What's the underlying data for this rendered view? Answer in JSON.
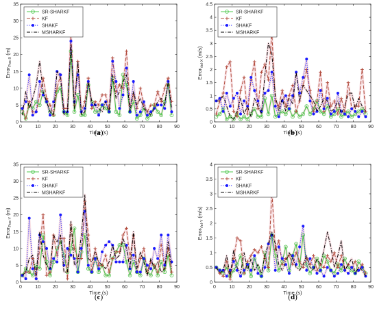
{
  "legend_entries": [
    "SR-SHARKF",
    "KF",
    "SHAKF",
    "MSHARKF"
  ],
  "colors": {
    "sr_sharkf": "#4cc84c",
    "kf": "#b04a3a",
    "shakf": "#1a1aff",
    "msharkf": "#000000",
    "glow": "#f2c8d0"
  },
  "chart_data": [
    {
      "type": "line",
      "panel_label": "a",
      "xlabel": "Time (s)",
      "ylabel": "Error",
      "ylabel_sub": "Pos-X",
      "ylabel_unit": "(m)",
      "xlim": [
        0,
        90
      ],
      "ylim": [
        0,
        35
      ],
      "xticks": [
        0,
        10,
        20,
        30,
        40,
        50,
        60,
        70,
        80,
        90
      ],
      "yticks": [
        0,
        5,
        10,
        15,
        20,
        25,
        30,
        35
      ],
      "ytick_labels": [
        "0",
        "5",
        "10",
        "15",
        "20",
        "25",
        "30",
        "35"
      ],
      "x": [
        1,
        3,
        5,
        7,
        9,
        11,
        13,
        15,
        17,
        19,
        21,
        23,
        25,
        27,
        29,
        31,
        33,
        35,
        37,
        39,
        41,
        43,
        45,
        47,
        49,
        51,
        53,
        55,
        57,
        59,
        61,
        63,
        65,
        67,
        69,
        71,
        73,
        75,
        77,
        79,
        81,
        83,
        85,
        87
      ],
      "series": [
        {
          "name": "SR-SHARKF",
          "values": [
            3,
            1,
            5,
            4,
            6,
            5,
            9,
            6,
            3,
            2,
            9,
            10,
            3,
            2,
            21,
            3,
            8,
            2,
            2,
            11,
            6,
            3,
            3,
            5,
            4,
            3,
            13,
            3,
            2,
            14,
            11,
            3,
            6,
            1,
            2,
            4,
            1,
            2,
            5,
            3,
            2,
            6,
            11,
            2
          ]
        },
        {
          "name": "KF",
          "values": [
            4,
            1,
            6,
            3,
            3,
            8,
            13,
            7,
            5,
            2,
            10,
            14,
            4,
            4,
            26,
            5,
            18,
            3,
            6,
            13,
            4,
            6,
            5,
            8,
            8,
            4,
            19,
            9,
            11,
            10,
            21,
            5,
            8,
            4,
            10,
            5,
            3,
            5,
            5,
            9,
            6,
            10,
            13,
            6
          ]
        },
        {
          "name": "SHAKF",
          "values": [
            4,
            6,
            14,
            2,
            3,
            12,
            8,
            6,
            2,
            6,
            15,
            14,
            3,
            3,
            24,
            6,
            14,
            3,
            4,
            12,
            5,
            5,
            2,
            5,
            6,
            3,
            18,
            12,
            4,
            8,
            16,
            3,
            12,
            2,
            3,
            6,
            2,
            3,
            4,
            5,
            5,
            4,
            12,
            3
          ]
        },
        {
          "name": "MSHARKF",
          "values": [
            2,
            9,
            4,
            7,
            11,
            18,
            9,
            6,
            3,
            2,
            15,
            13,
            2,
            3,
            23,
            4,
            18,
            2,
            3,
            12,
            6,
            5,
            4,
            3,
            6,
            3,
            14,
            7,
            9,
            12,
            14,
            3,
            9,
            5,
            7,
            4,
            3,
            2,
            4,
            6,
            7,
            5,
            12,
            4
          ]
        }
      ]
    },
    {
      "type": "line",
      "panel_label": "b",
      "xlabel": "Time (s)",
      "ylabel": "Error",
      "ylabel_sub": "Vel-X",
      "ylabel_unit": "(m/s)",
      "xlim": [
        0,
        90
      ],
      "ylim": [
        0,
        4.5
      ],
      "xticks": [
        0,
        10,
        20,
        30,
        40,
        50,
        60,
        70,
        80,
        90
      ],
      "yticks": [
        0,
        0.5,
        1,
        1.5,
        2,
        2.5,
        3,
        3.5,
        4,
        4.5
      ],
      "ytick_labels": [
        "0",
        "0.5",
        "1",
        "1.5",
        "2",
        "2.5",
        "3",
        "3.5",
        "4",
        "4.5"
      ],
      "x": [
        1,
        3,
        5,
        7,
        9,
        11,
        13,
        15,
        17,
        19,
        21,
        23,
        25,
        27,
        29,
        31,
        33,
        35,
        37,
        39,
        41,
        43,
        45,
        47,
        49,
        51,
        53,
        55,
        57,
        59,
        61,
        63,
        65,
        67,
        69,
        71,
        73,
        75,
        77,
        79,
        81,
        83,
        85,
        87
      ],
      "series": [
        {
          "name": "SR-SHARKF",
          "values": [
            0.2,
            0.3,
            0.5,
            0.1,
            0.2,
            0.1,
            0.3,
            0.1,
            0.2,
            0.1,
            0.3,
            0.5,
            0.2,
            0.2,
            0.9,
            0.3,
            1.0,
            0.2,
            0.3,
            0.4,
            0.3,
            0.5,
            0.2,
            0.4,
            0.2,
            0.3,
            0.6,
            0.3,
            0.5,
            0.8,
            0.4,
            0.3,
            0.6,
            0.2,
            0.3,
            0.5,
            0.2,
            0.3,
            0.4,
            0.2,
            0.3,
            0.4,
            0.5,
            0.3
          ]
        },
        {
          "name": "KF",
          "values": [
            0.3,
            0.8,
            1.1,
            2.1,
            2.3,
            0.4,
            0.2,
            1.2,
            1.7,
            0.3,
            1.6,
            2.3,
            0.5,
            1.9,
            2.2,
            1.6,
            3.4,
            0.8,
            0.6,
            1.2,
            0.6,
            1.0,
            1.4,
            0.4,
            0.8,
            1.4,
            2.0,
            1.2,
            0.4,
            0.8,
            1.9,
            0.4,
            1.5,
            0.6,
            0.8,
            0.3,
            0.9,
            0.4,
            1.5,
            0.5,
            0.6,
            0.6,
            2.0,
            0.4
          ]
        },
        {
          "name": "SHAKF",
          "values": [
            0.8,
            0.9,
            0.4,
            1.1,
            0.6,
            0.9,
            1.1,
            0.3,
            0.8,
            0.6,
            1.7,
            1.2,
            0.8,
            0.4,
            1.1,
            1.2,
            1.9,
            0.6,
            0.2,
            0.8,
            1.0,
            0.5,
            1.0,
            1.9,
            1.1,
            1.7,
            2.4,
            0.8,
            0.3,
            0.4,
            1.2,
            0.5,
            0.9,
            0.3,
            0.4,
            1.1,
            0.4,
            0.3,
            0.2,
            0.5,
            0.4,
            0.2,
            0.4,
            0.2
          ]
        },
        {
          "name": "MSHARKF",
          "values": [
            0.8,
            0.8,
            1.0,
            0.6,
            0.2,
            0.1,
            0.4,
            0.9,
            0.3,
            0.6,
            0.2,
            0.9,
            0.6,
            0.3,
            1.8,
            3.0,
            2.6,
            1.0,
            0.4,
            0.9,
            0.4,
            0.9,
            0.7,
            1.9,
            0.8,
            1.4,
            1.2,
            1.0,
            0.8,
            0.4,
            0.6,
            0.9,
            0.8,
            0.4,
            0.5,
            0.8,
            0.3,
            0.6,
            1.1,
            1.1,
            0.5,
            0.9,
            0.6,
            0.4
          ]
        }
      ]
    },
    {
      "type": "line",
      "panel_label": "c",
      "xlabel": "Time (s)",
      "ylabel": "Error",
      "ylabel_sub": "Pos-Y",
      "ylabel_unit": "(m)",
      "xlim": [
        0,
        90
      ],
      "ylim": [
        0,
        35
      ],
      "xticks": [
        0,
        10,
        20,
        30,
        40,
        50,
        60,
        70,
        80,
        90
      ],
      "yticks": [
        0,
        5,
        10,
        15,
        20,
        25,
        30,
        35
      ],
      "ytick_labels": [
        "0",
        "5",
        "10",
        "15",
        "20",
        "25",
        "30",
        "35"
      ],
      "x": [
        1,
        3,
        5,
        7,
        9,
        11,
        13,
        15,
        17,
        19,
        21,
        23,
        25,
        27,
        29,
        31,
        33,
        35,
        37,
        39,
        41,
        43,
        45,
        47,
        49,
        51,
        53,
        55,
        57,
        59,
        61,
        63,
        65,
        67,
        69,
        71,
        73,
        75,
        77,
        79,
        81,
        83,
        85,
        87
      ],
      "series": [
        {
          "name": "SR-SHARKF",
          "values": [
            2,
            4,
            3,
            2,
            5,
            4,
            14,
            6,
            2,
            6,
            10,
            12,
            8,
            3,
            10,
            16,
            3,
            9,
            14,
            4,
            3,
            7,
            3,
            5,
            2,
            2,
            7,
            9,
            11,
            11,
            6,
            2,
            6,
            3,
            2,
            7,
            3,
            2,
            5,
            2,
            6,
            3,
            8,
            2
          ]
        },
        {
          "name": "KF",
          "values": [
            2,
            3,
            3,
            7,
            1,
            10,
            20,
            2,
            3,
            14,
            8,
            13,
            13,
            1,
            17,
            10,
            7,
            7,
            24,
            14,
            3,
            10,
            5,
            5,
            8,
            3,
            7,
            9,
            9,
            14,
            16,
            7,
            14,
            3,
            7,
            10,
            3,
            6,
            5,
            3,
            11,
            4,
            10,
            3
          ]
        },
        {
          "name": "SHAKF",
          "values": [
            2,
            1,
            19,
            4,
            1,
            14,
            12,
            10,
            4,
            7,
            6,
            20,
            5,
            10,
            8,
            7,
            3,
            10,
            21,
            5,
            3,
            7,
            4,
            9,
            11,
            12,
            11,
            6,
            6,
            6,
            11,
            4,
            8,
            3,
            3,
            7,
            5,
            4,
            10,
            7,
            14,
            5,
            14,
            6
          ]
        },
        {
          "name": "MSHARKF",
          "values": [
            2,
            3,
            7,
            8,
            2,
            15,
            8,
            5,
            4,
            14,
            12,
            14,
            3,
            3,
            18,
            5,
            6,
            14,
            26,
            7,
            6,
            9,
            6,
            5,
            4,
            6,
            11,
            7,
            8,
            13,
            10,
            4,
            15,
            4,
            9,
            6,
            2,
            7,
            4,
            6,
            3,
            4,
            12,
            4
          ]
        }
      ]
    },
    {
      "type": "line",
      "panel_label": "d",
      "xlabel": "Time (s)",
      "ylabel": "Error",
      "ylabel_sub": "Vel-Y",
      "ylabel_unit": "(m/s)",
      "xlim": [
        0,
        90
      ],
      "ylim": [
        0,
        4
      ],
      "xticks": [
        0,
        10,
        20,
        30,
        40,
        50,
        60,
        70,
        80,
        90
      ],
      "yticks": [
        0,
        0.5,
        1,
        1.5,
        2,
        2.5,
        3,
        3.5,
        4
      ],
      "ytick_labels": [
        "0",
        "0.5",
        "1",
        "1.5",
        "2",
        "2.5",
        "3",
        "3.5",
        "4"
      ],
      "x": [
        1,
        3,
        5,
        7,
        9,
        11,
        13,
        15,
        17,
        19,
        21,
        23,
        25,
        27,
        29,
        31,
        33,
        35,
        37,
        39,
        41,
        43,
        45,
        47,
        49,
        51,
        53,
        55,
        57,
        59,
        61,
        63,
        65,
        67,
        69,
        71,
        73,
        75,
        77,
        79,
        81,
        83,
        85,
        87
      ],
      "series": [
        {
          "name": "SR-SHARKF",
          "values": [
            0.5,
            0.4,
            0.3,
            0.5,
            0.2,
            0.4,
            0.6,
            0.9,
            0.3,
            0.6,
            0.2,
            0.8,
            0.5,
            0.2,
            1.0,
            0.4,
            1.6,
            0.9,
            0.4,
            0.7,
            1.2,
            0.4,
            0.9,
            1.3,
            0.5,
            1.6,
            0.6,
            0.3,
            0.5,
            0.8,
            0.4,
            0.9,
            0.7,
            0.4,
            0.3,
            0.6,
            0.4,
            0.8,
            0.5,
            0.4,
            0.3,
            0.7,
            0.5,
            0.3
          ]
        },
        {
          "name": "KF",
          "values": [
            0.5,
            0.3,
            0.2,
            0.7,
            0.1,
            0.8,
            1.5,
            1.4,
            0.3,
            0.7,
            0.9,
            1.1,
            1.0,
            1.2,
            0.8,
            0.5,
            3.1,
            1.1,
            1.4,
            0.6,
            0.8,
            0.9,
            0.6,
            1.0,
            0.7,
            0.5,
            0.8,
            0.6,
            0.9,
            0.4,
            0.6,
            0.5,
            0.9,
            0.7,
            1.0,
            0.5,
            0.9,
            0.4,
            0.6,
            0.5,
            0.7,
            0.4,
            0.6,
            0.3
          ]
        },
        {
          "name": "SHAKF",
          "values": [
            0.5,
            0.4,
            0.4,
            0.2,
            0.4,
            0.7,
            0.4,
            0.2,
            0.4,
            0.6,
            0.4,
            0.9,
            0.3,
            0.2,
            0.5,
            1.3,
            1.6,
            0.4,
            1.2,
            0.8,
            0.6,
            0.3,
            0.9,
            0.6,
            1.2,
            1.9,
            0.4,
            0.8,
            0.5,
            0.3,
            0.4,
            0.2,
            0.5,
            0.4,
            0.2,
            0.3,
            0.6,
            0.4,
            0.3,
            0.5,
            0.3,
            0.4,
            0.5,
            0.2
          ]
        },
        {
          "name": "MSHARKF",
          "values": [
            0.5,
            0.3,
            0.4,
            0.9,
            0.2,
            1.1,
            0.5,
            0.3,
            1.0,
            0.4,
            0.8,
            0.4,
            0.6,
            0.3,
            0.9,
            1.3,
            1.7,
            1.3,
            0.6,
            0.4,
            0.7,
            1.0,
            0.8,
            0.5,
            0.4,
            0.6,
            0.9,
            0.5,
            0.4,
            0.8,
            0.6,
            1.1,
            1.7,
            1.2,
            0.5,
            0.9,
            1.4,
            0.4,
            0.6,
            0.8,
            0.3,
            0.5,
            0.4,
            0.2
          ]
        }
      ]
    }
  ]
}
